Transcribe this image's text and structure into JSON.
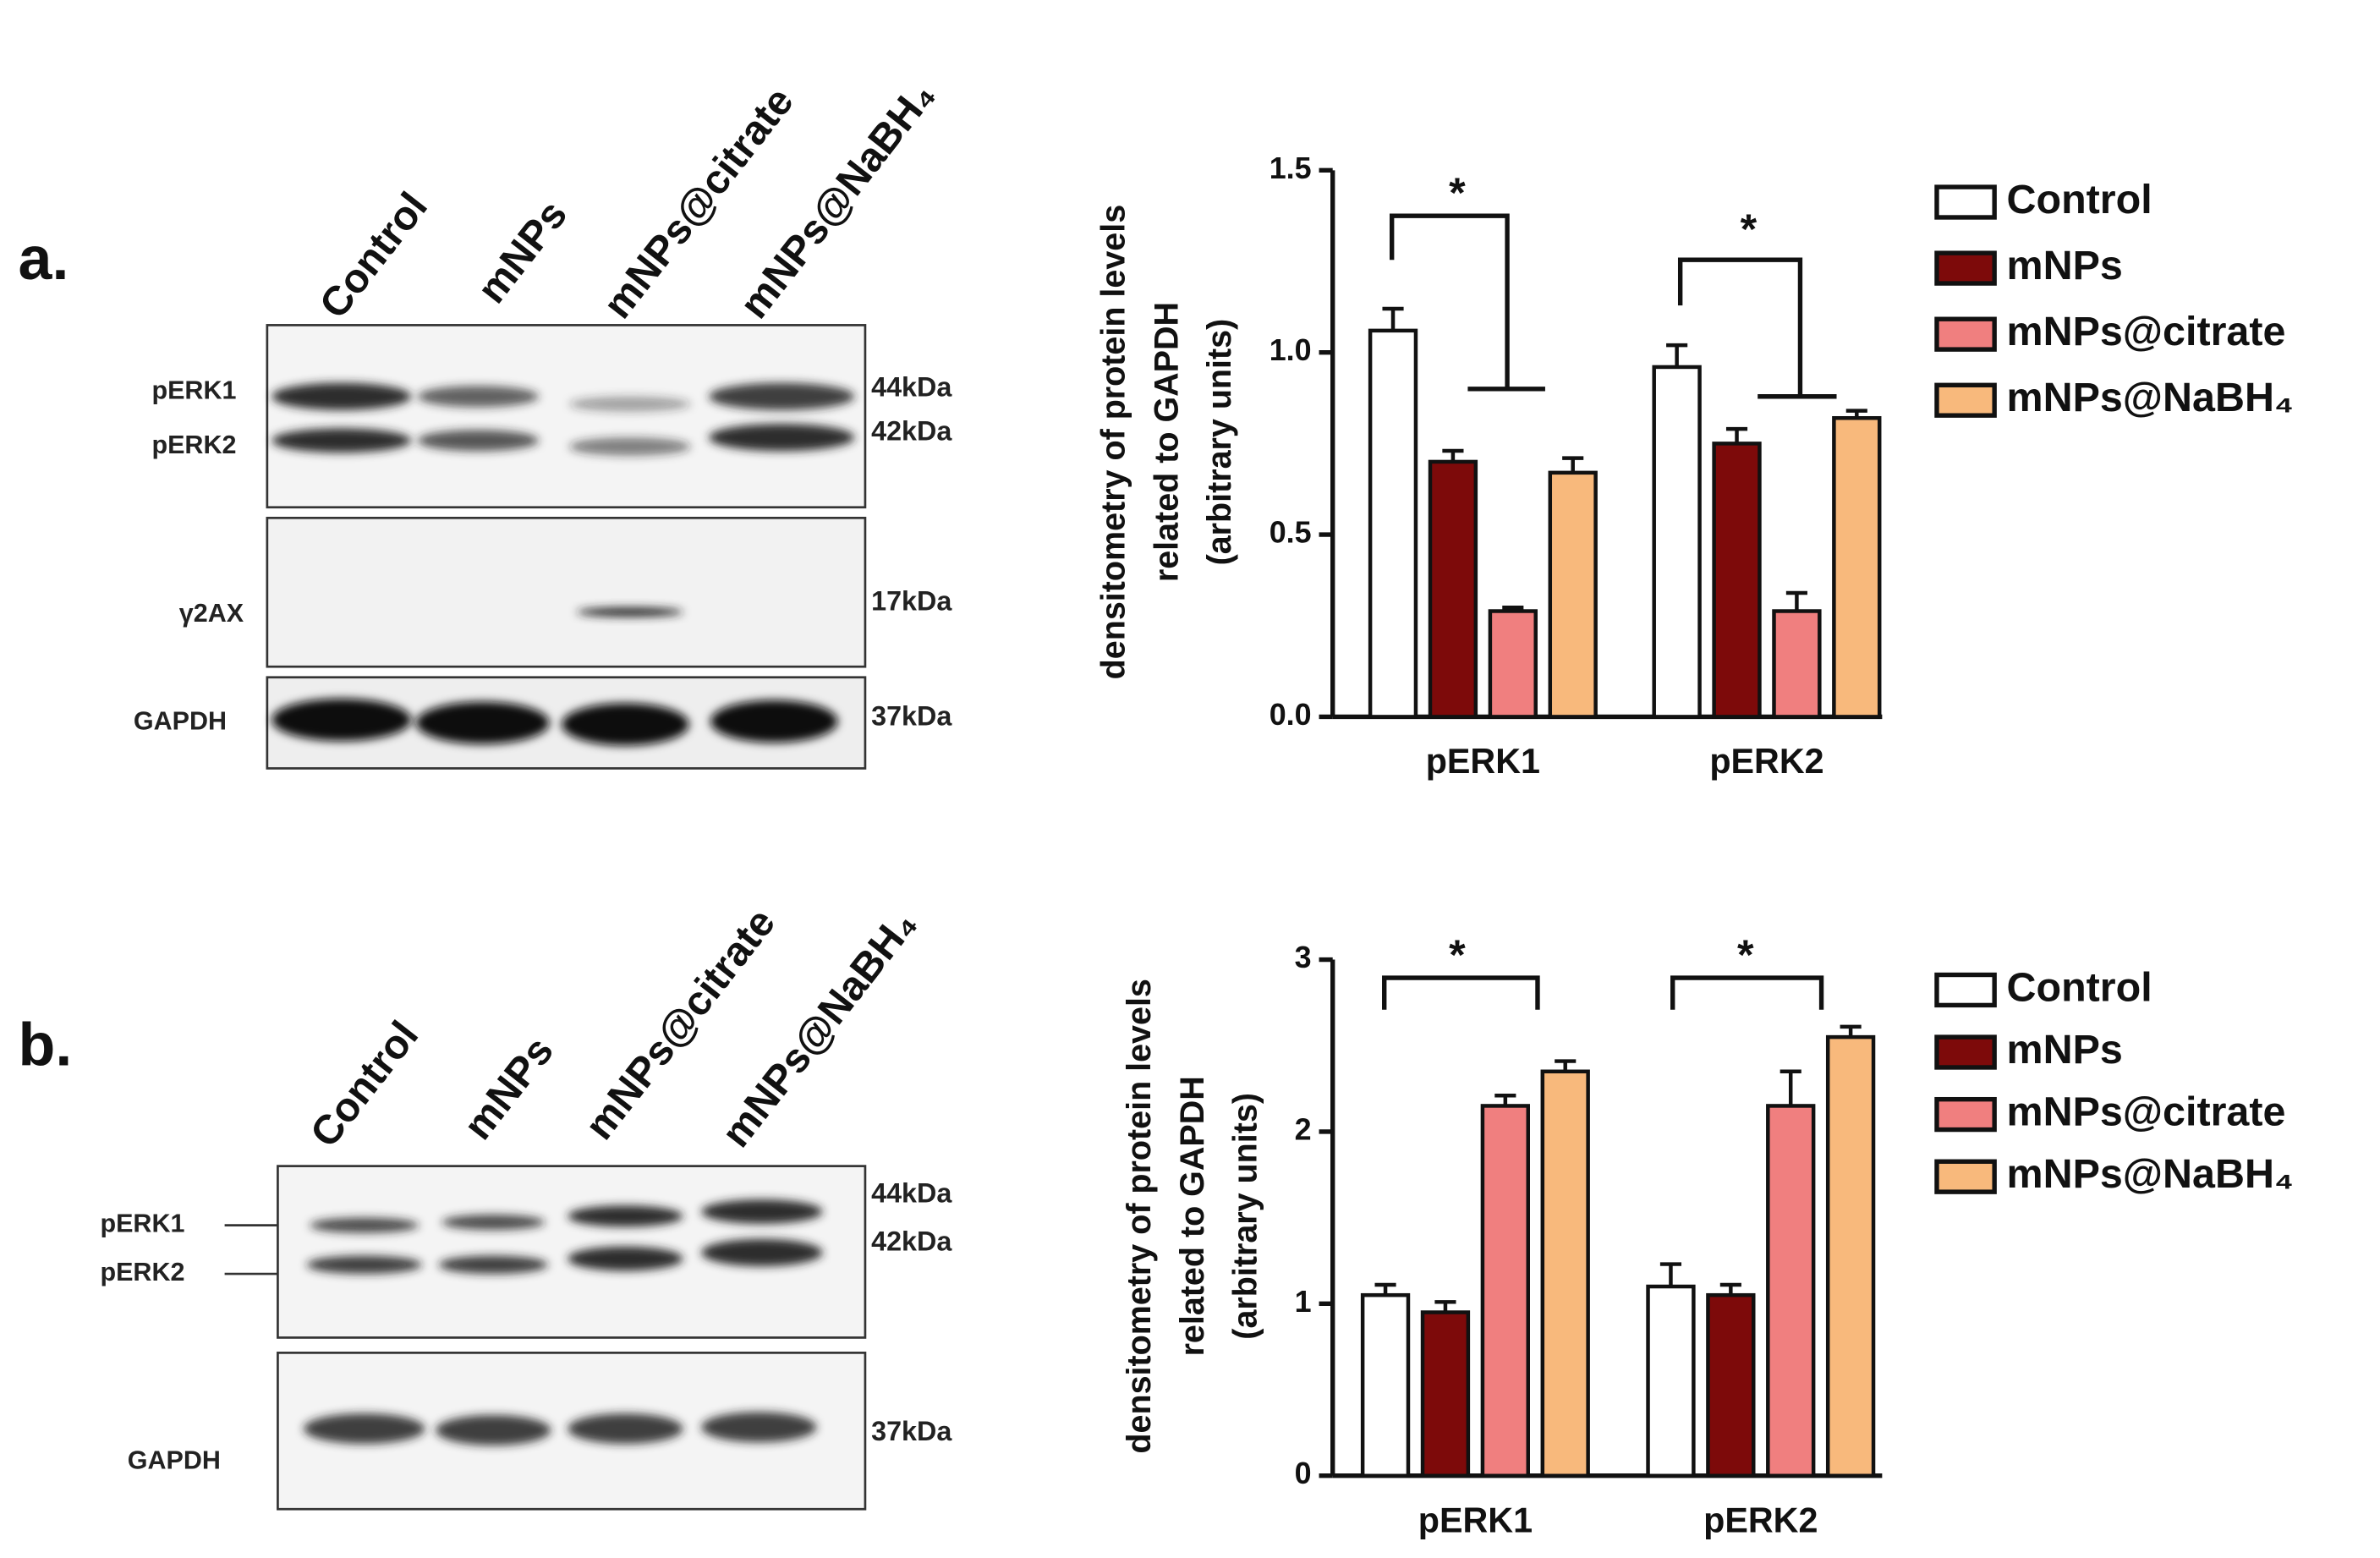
{
  "blots": [
    {
      "panel_label": "a.",
      "lanes": [
        "Control",
        "mNPs",
        "mNPs@citrate",
        "mNPs@NaBH₄"
      ],
      "bands": [
        "pERK1",
        "pERK2",
        "γ2AX",
        "GAPDH"
      ],
      "sizes": [
        "44kDa",
        "42kDa",
        "17kDa",
        "37kDa"
      ]
    },
    {
      "panel_label": "b.",
      "lanes": [
        "Control",
        "mNPs",
        "mNPs@citrate",
        "mNPs@NaBH₄"
      ],
      "bands": [
        "pERK1",
        "pERK2",
        "GAPDH"
      ],
      "sizes": [
        "44kDa",
        "42kDa",
        "37kDa"
      ]
    }
  ],
  "chart_data": [
    {
      "type": "bar",
      "ylabel": [
        "densitometry of protein levels",
        "related to GAPDH",
        "(arbitrary units)"
      ],
      "categories": [
        "pERK1",
        "pERK2"
      ],
      "series": [
        {
          "name": "Control",
          "color": "#ffffff",
          "values": [
            1.06,
            0.96
          ],
          "errors": [
            0.06,
            0.06
          ]
        },
        {
          "name": "mNPs",
          "color": "#7d0a0a",
          "values": [
            0.7,
            0.75
          ],
          "errors": [
            0.03,
            0.04
          ]
        },
        {
          "name": "mNPs@citrate",
          "color": "#f07f7f",
          "values": [
            0.29,
            0.29
          ],
          "errors": [
            0.01,
            0.05
          ]
        },
        {
          "name": "mNPs@NaBH₄",
          "color": "#f8b97c",
          "values": [
            0.67,
            0.82
          ],
          "errors": [
            0.04,
            0.02
          ]
        }
      ],
      "ylim": [
        0,
        1.5
      ],
      "yticks": [
        {
          "value": 0,
          "label": "0.0"
        },
        0.5,
        {
          "value": 1,
          "label": "1.0"
        },
        1.5
      ],
      "annotations": [
        "*",
        "*"
      ]
    },
    {
      "type": "bar",
      "ylabel": [
        "densitometry of protein levels",
        "related to GAPDH",
        "(arbitrary units)"
      ],
      "categories": [
        "pERK1",
        "pERK2"
      ],
      "series": [
        {
          "name": "Control",
          "color": "#ffffff",
          "values": [
            1.05,
            1.1
          ],
          "errors": [
            0.06,
            0.13
          ]
        },
        {
          "name": "mNPs",
          "color": "#7d0a0a",
          "values": [
            0.95,
            1.05
          ],
          "errors": [
            0.06,
            0.06
          ]
        },
        {
          "name": "mNPs@citrate",
          "color": "#f07f7f",
          "values": [
            2.15,
            2.15
          ],
          "errors": [
            0.06,
            0.2
          ]
        },
        {
          "name": "mNPs@NaBH₄",
          "color": "#f8b97c",
          "values": [
            2.35,
            2.55
          ],
          "errors": [
            0.06,
            0.06
          ]
        }
      ],
      "ylim": [
        0,
        3
      ],
      "yticks": [
        0,
        1,
        2,
        3
      ],
      "annotations": [
        "*",
        "*"
      ]
    }
  ]
}
